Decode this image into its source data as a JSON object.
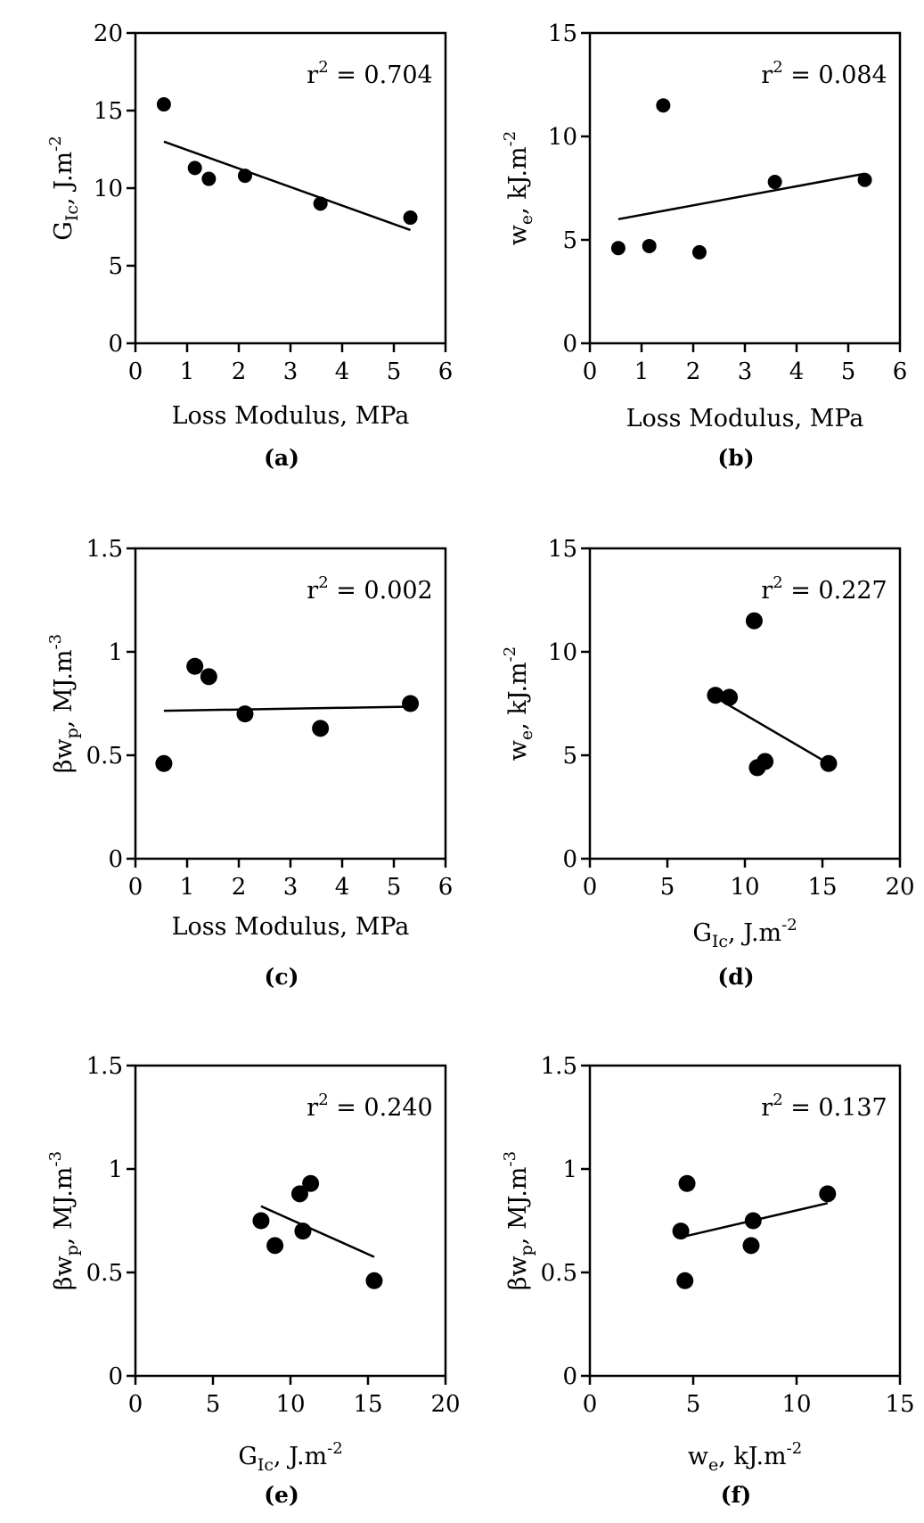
{
  "figure_title": "",
  "chart_data": [
    {
      "type": "scatter",
      "panel": "(a)",
      "x": [
        0.55,
        1.15,
        1.42,
        2.12,
        3.58,
        5.32
      ],
      "y": [
        15.4,
        11.3,
        10.6,
        10.8,
        9.0,
        8.1
      ],
      "fit_line": {
        "x": [
          0.55,
          5.32
        ],
        "y": [
          13.0,
          7.3
        ]
      },
      "r2_label": "r",
      "r2_sup": "2",
      "r2_value": " = 0.704",
      "xlabel": "Loss Modulus, MPa",
      "ylabel_main": "G",
      "ylabel_sub": "Ic",
      "ylabel_unit": ", J.m",
      "ylabel_sup": "-2",
      "xlim": [
        0,
        6
      ],
      "ylim": [
        0,
        20
      ],
      "xticks": [
        0,
        1,
        2,
        3,
        4,
        5,
        6
      ],
      "yticks": [
        0,
        5,
        10,
        15,
        20
      ]
    },
    {
      "type": "scatter",
      "panel": "(b)",
      "x": [
        0.55,
        1.15,
        1.42,
        2.12,
        3.58,
        5.32
      ],
      "y": [
        4.6,
        4.7,
        11.5,
        4.4,
        7.8,
        7.9
      ],
      "fit_line": {
        "x": [
          0.55,
          5.32
        ],
        "y": [
          6.0,
          8.2
        ]
      },
      "r2_label": "r",
      "r2_sup": "2",
      "r2_value": " = 0.084",
      "xlabel": "Loss Modulus, MPa",
      "ylabel_main": "w",
      "ylabel_sub": "e",
      "ylabel_unit": ", kJ.m",
      "ylabel_sup": "-2",
      "xlim": [
        0,
        6
      ],
      "ylim": [
        0,
        15
      ],
      "xticks": [
        0,
        1,
        2,
        3,
        4,
        5,
        6
      ],
      "yticks": [
        0,
        5,
        10,
        15
      ]
    },
    {
      "type": "scatter",
      "panel": "(c)",
      "x": [
        0.55,
        1.15,
        1.42,
        2.12,
        3.58,
        5.32
      ],
      "y": [
        0.46,
        0.93,
        0.88,
        0.7,
        0.63,
        0.75
      ],
      "fit_line": {
        "x": [
          0.55,
          5.32
        ],
        "y": [
          0.715,
          0.735
        ]
      },
      "r2_label": "r",
      "r2_sup": "2",
      "r2_value": " = 0.002",
      "xlabel": "Loss Modulus, MPa",
      "ylabel_main": "βw",
      "ylabel_sub": "p",
      "ylabel_unit": ", MJ.m",
      "ylabel_sup": "-3",
      "xlim": [
        0,
        6
      ],
      "ylim": [
        0,
        1.5
      ],
      "xticks": [
        0,
        1,
        2,
        3,
        4,
        5,
        6
      ],
      "yticks": [
        0,
        0.5,
        1,
        1.5
      ]
    },
    {
      "type": "scatter",
      "panel": "(d)",
      "x": [
        8.1,
        9.0,
        10.6,
        10.8,
        11.3,
        15.4
      ],
      "y": [
        7.9,
        7.8,
        11.5,
        4.4,
        4.7,
        4.6
      ],
      "fit_line": {
        "x": [
          8.1,
          15.4
        ],
        "y": [
          7.8,
          4.6
        ]
      },
      "r2_label": "r",
      "r2_sup": "2",
      "r2_value": " = 0.227",
      "xlabel_main": "G",
      "xlabel_sub": "Ic",
      "xlabel_unit": ", J.m",
      "xlabel_sup": "-2",
      "ylabel_main": "w",
      "ylabel_sub": "e",
      "ylabel_unit": ", kJ.m",
      "ylabel_sup": "-2",
      "xlim": [
        0,
        20
      ],
      "ylim": [
        0,
        15
      ],
      "xticks": [
        0,
        5,
        10,
        15,
        20
      ],
      "yticks": [
        0,
        5,
        10,
        15
      ]
    },
    {
      "type": "scatter",
      "panel": "(e)",
      "x": [
        8.1,
        9.0,
        10.6,
        10.8,
        11.3,
        15.4
      ],
      "y": [
        0.75,
        0.63,
        0.88,
        0.7,
        0.93,
        0.46
      ],
      "fit_line": {
        "x": [
          8.1,
          15.4
        ],
        "y": [
          0.82,
          0.575
        ]
      },
      "r2_label": "r",
      "r2_sup": "2",
      "r2_value": " = 0.240",
      "xlabel_main": "G",
      "xlabel_sub": "Ic",
      "xlabel_unit": ", J.m",
      "xlabel_sup": "-2",
      "ylabel_main": "βw",
      "ylabel_sub": "p",
      "ylabel_unit": ", MJ.m",
      "ylabel_sup": "-3",
      "xlim": [
        0,
        20
      ],
      "ylim": [
        0,
        1.5
      ],
      "xticks": [
        0,
        5,
        10,
        15,
        20
      ],
      "yticks": [
        0,
        0.5,
        1,
        1.5
      ]
    },
    {
      "type": "scatter",
      "panel": "(f)",
      "x": [
        4.4,
        4.6,
        4.7,
        7.8,
        7.9,
        11.5
      ],
      "y": [
        0.7,
        0.46,
        0.93,
        0.63,
        0.75,
        0.88
      ],
      "fit_line": {
        "x": [
          4.4,
          11.5
        ],
        "y": [
          0.67,
          0.835
        ]
      },
      "r2_label": "r",
      "r2_sup": "2",
      "r2_value": " = 0.137",
      "xlabel_main": "w",
      "xlabel_sub": "e",
      "xlabel_unit": ", kJ.m",
      "xlabel_sup": "-2",
      "ylabel_main": "βw",
      "ylabel_sub": "p",
      "ylabel_unit": ", MJ.m",
      "ylabel_sup": "-3",
      "xlim": [
        0,
        15
      ],
      "ylim": [
        0,
        1.5
      ],
      "xticks": [
        0,
        5,
        10,
        15
      ],
      "yticks": [
        0,
        0.5,
        1,
        1.5
      ]
    }
  ]
}
